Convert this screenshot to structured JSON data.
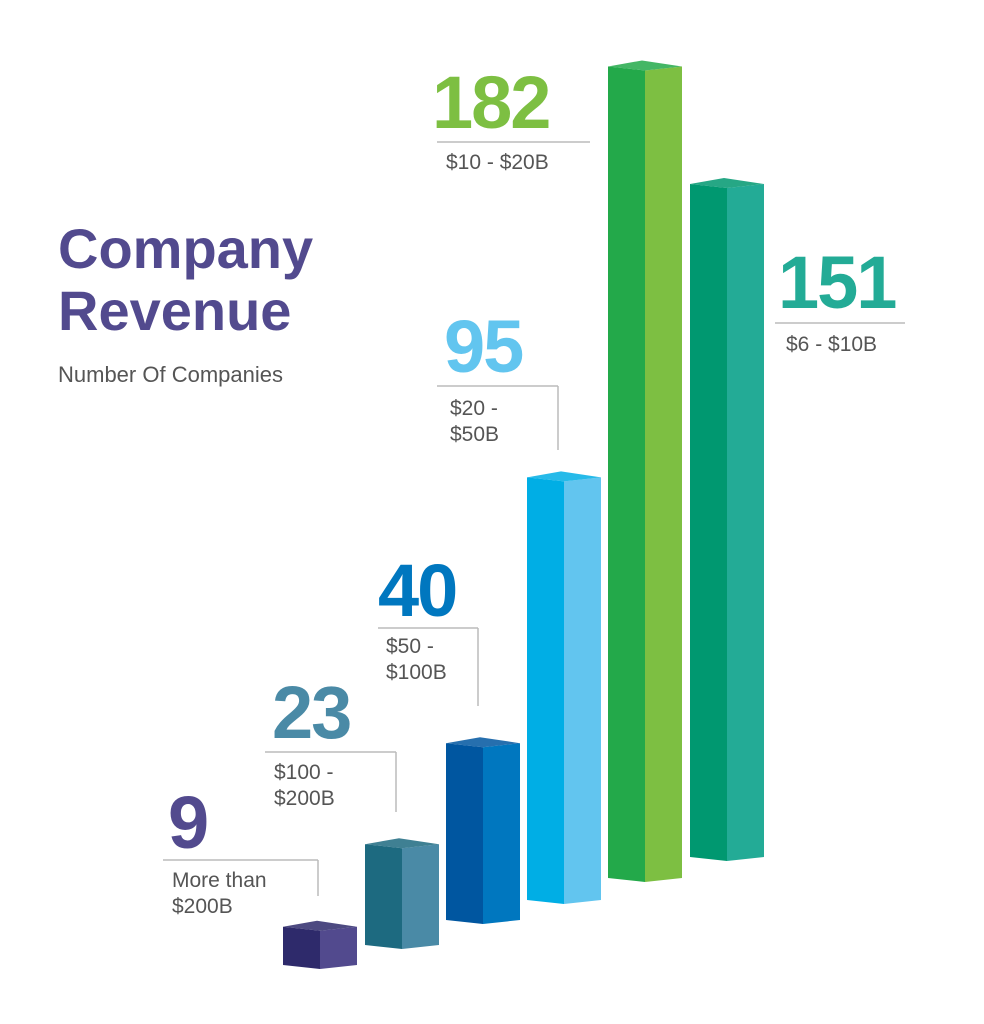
{
  "chart_data": {
    "type": "bar",
    "title": "Company Revenue",
    "subtitle": "Number Of Companies",
    "categories": [
      "More than $200B",
      "$100 - $200B",
      "$50 - $100B",
      "$20 - $50B",
      "$10 - $20B",
      "$6 - $10B"
    ],
    "values": [
      9,
      23,
      40,
      95,
      182,
      151
    ],
    "colors": [
      "#524a8e",
      "#4a8aa6",
      "#0077bf",
      "#62c5ef",
      "#7dbf42",
      "#23ab96"
    ],
    "dark_colors": [
      "#2e2a6b",
      "#1d6a80",
      "#0056a0",
      "#00aee5",
      "#23a94a",
      "#009870"
    ]
  }
}
